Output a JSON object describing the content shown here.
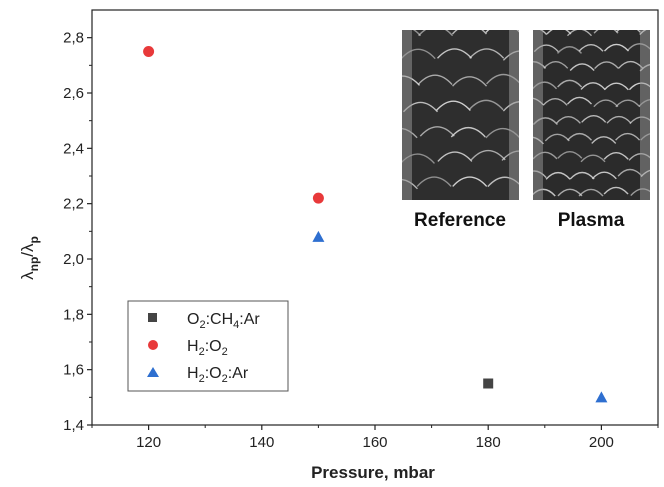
{
  "chart_data": {
    "type": "scatter",
    "xlabel": "Pressure, mbar",
    "ylabel_main": "λ",
    "ylabel_sub1": "np",
    "ylabel_slash": "/λ",
    "ylabel_sub2": "p",
    "xlim": [
      110,
      210
    ],
    "ylim": [
      1.4,
      2.9
    ],
    "xticks": [
      120,
      140,
      160,
      180,
      200
    ],
    "yticks": [
      1.4,
      1.6,
      1.8,
      2.0,
      2.2,
      2.4,
      2.6,
      2.8
    ],
    "ytick_labels": [
      "1,4",
      "1,6",
      "1,8",
      "2,0",
      "2,2",
      "2,4",
      "2,6",
      "2,8"
    ],
    "legend_position": "bottom-left",
    "series": [
      {
        "legend_parts": [
          "O",
          "2",
          ":CH",
          "4",
          ":Ar"
        ],
        "marker": "square",
        "color": "#444444",
        "points": [
          {
            "x": 180,
            "y": 1.55
          }
        ]
      },
      {
        "legend_parts": [
          "H",
          "2",
          ":O",
          "2",
          ""
        ],
        "marker": "circle",
        "color": "#e8393a",
        "points": [
          {
            "x": 120,
            "y": 2.75
          },
          {
            "x": 150,
            "y": 2.22
          }
        ]
      },
      {
        "legend_parts": [
          "H",
          "2",
          ":O",
          "2",
          ":Ar"
        ],
        "marker": "triangle",
        "color": "#2e6fd0",
        "points": [
          {
            "x": 150,
            "y": 2.08
          },
          {
            "x": 200,
            "y": 1.5
          }
        ]
      }
    ],
    "insets": [
      {
        "caption": "Reference"
      },
      {
        "caption": "Plasma"
      }
    ]
  }
}
